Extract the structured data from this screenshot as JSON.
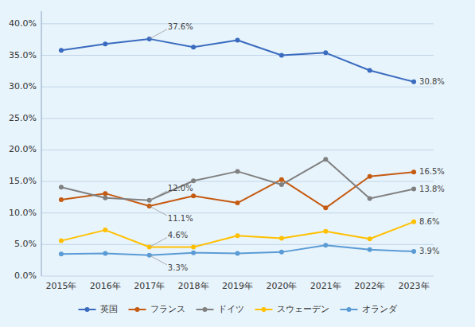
{
  "chart_data": {
    "type": "line",
    "categories": [
      "2015年",
      "2016年",
      "2017年",
      "2018年",
      "2019年",
      "2020年",
      "2021年",
      "2022年",
      "2023年"
    ],
    "series": [
      {
        "name": "英国",
        "color": "#3a6bbf",
        "values": [
          35.8,
          36.8,
          37.6,
          36.3,
          37.4,
          35.0,
          35.4,
          32.6,
          30.8
        ]
      },
      {
        "name": "フランス",
        "color": "#c55a11",
        "values": [
          12.1,
          13.1,
          11.1,
          12.7,
          11.6,
          15.3,
          10.8,
          15.8,
          16.5
        ]
      },
      {
        "name": "ドイツ",
        "color": "#808080",
        "values": [
          14.1,
          12.4,
          12.0,
          15.1,
          16.6,
          14.5,
          18.5,
          12.3,
          13.8
        ]
      },
      {
        "name": "スウェーデン",
        "color": "#ffc000",
        "values": [
          5.6,
          7.3,
          4.6,
          4.6,
          6.4,
          6.0,
          7.1,
          5.9,
          8.6
        ]
      },
      {
        "name": "オランダ",
        "color": "#5b9bd5",
        "values": [
          3.5,
          3.6,
          3.3,
          3.7,
          3.6,
          3.8,
          4.9,
          4.2,
          3.9
        ]
      }
    ],
    "ylim": [
      0,
      42
    ],
    "yticks": [
      {
        "value": 0,
        "label": "0.0%"
      },
      {
        "value": 5,
        "label": "5.0%"
      },
      {
        "value": 10,
        "label": "10.0%"
      },
      {
        "value": 15,
        "label": "15.0%"
      },
      {
        "value": 20,
        "label": "20.0%"
      },
      {
        "value": 25,
        "label": "25.0%"
      },
      {
        "value": 30,
        "label": "30.0%"
      },
      {
        "value": 35,
        "label": "35.0%"
      },
      {
        "value": 40,
        "label": "40.0%"
      }
    ],
    "grid": true,
    "legend": "bottom",
    "marker": "circle",
    "annotations": [
      {
        "text": "37.6%",
        "x": "2017年",
        "y": 37.6
      },
      {
        "text": "30.8%",
        "x": "2023年",
        "y": 30.8
      },
      {
        "text": "12.0%",
        "x": "2017年",
        "y": 12.0
      },
      {
        "text": "11.1%",
        "x": "2017年",
        "y": 11.1
      },
      {
        "text": "4.6%",
        "x": "2017年",
        "y": 4.6
      },
      {
        "text": "3.3%",
        "x": "2017年",
        "y": 3.3
      },
      {
        "text": "16.5%",
        "x": "2023年",
        "y": 16.5
      },
      {
        "text": "13.8%",
        "x": "2023年",
        "y": 13.8
      },
      {
        "text": "8.6%",
        "x": "2023年",
        "y": 8.6
      },
      {
        "text": "3.9%",
        "x": "2023年",
        "y": 3.9
      }
    ]
  }
}
